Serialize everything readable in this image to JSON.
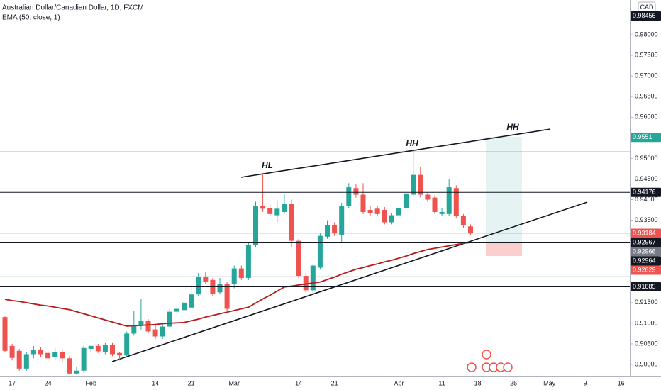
{
  "chart_data": {
    "type": "candlestick",
    "title": "Australian Dollar/Canadian Dollar, 1D, FXCM",
    "currency": "CAD",
    "up_color": "#26a69a",
    "down_color": "#ef5350",
    "categories": [
      null,
      "17",
      null,
      null,
      null,
      null,
      "24",
      null,
      null,
      null,
      null,
      null,
      "Feb",
      null,
      null,
      null,
      null,
      null,
      null,
      null,
      null,
      "14",
      null,
      null,
      null,
      null,
      "21",
      null,
      null,
      null,
      null,
      null,
      "Mar",
      null,
      null,
      null,
      null,
      null,
      null,
      null,
      null,
      "14",
      null,
      null,
      null,
      null,
      "21",
      null,
      null,
      null,
      null,
      null,
      null,
      null,
      null,
      "Apr",
      null,
      null,
      null,
      null,
      null,
      "11",
      null,
      null,
      null,
      null,
      "18",
      null,
      null,
      null,
      null,
      "25",
      null,
      null,
      null,
      null,
      "May",
      null,
      null,
      null,
      null,
      "9",
      null,
      null,
      null,
      null,
      "16"
    ],
    "open": [
      0.9115,
      0.9045,
      0.9033,
      0.899,
      0.9025,
      0.9035,
      0.9028,
      0.9018,
      0.903,
      0.9015,
      0.8978,
      0.8985,
      0.9038,
      0.9045,
      0.903,
      0.9048,
      0.9028,
      0.9022,
      0.9075,
      0.9095,
      0.9105,
      0.9085,
      0.9068,
      0.9092,
      0.9128,
      0.9132,
      0.9138,
      0.917,
      0.9213,
      0.9205,
      0.9175,
      0.9195,
      0.9195,
      0.9233,
      0.921,
      0.929,
      0.9385,
      0.938,
      0.9362,
      0.937,
      0.939,
      0.93,
      0.9215,
      0.918,
      0.9235,
      0.931,
      0.9338,
      0.9315,
      0.9385,
      0.9428,
      0.9412,
      0.9375,
      0.9378,
      0.9375,
      0.9345,
      0.9362,
      0.938,
      0.9412,
      0.946,
      0.9412,
      0.9405,
      0.9365,
      0.9365,
      0.9428,
      0.936,
      0.9335,
      null,
      null,
      null,
      null,
      null,
      null,
      null,
      null,
      null,
      null,
      null,
      null,
      null,
      null,
      null,
      null,
      null,
      null,
      null,
      null,
      null
    ],
    "high": [
      0.9118,
      0.905,
      0.9038,
      0.903,
      0.9045,
      0.9042,
      0.9035,
      0.904,
      0.9035,
      0.902,
      0.8995,
      0.9045,
      0.9048,
      0.905,
      0.9052,
      0.9052,
      0.903,
      0.908,
      0.913,
      0.916,
      0.911,
      0.9098,
      0.9098,
      0.9135,
      0.9145,
      0.916,
      0.9195,
      0.9222,
      0.9225,
      0.921,
      0.921,
      0.92,
      0.924,
      0.924,
      0.9295,
      0.9395,
      0.9462,
      0.9388,
      0.9398,
      0.9415,
      0.94,
      0.9305,
      0.9222,
      0.9245,
      0.9318,
      0.935,
      0.9345,
      0.9392,
      0.944,
      0.9438,
      0.944,
      0.9385,
      0.9385,
      0.9382,
      0.9368,
      0.9385,
      0.942,
      0.9518,
      0.948,
      0.9418,
      0.941,
      0.938,
      0.945,
      0.9435,
      0.9365,
      0.934,
      null,
      null,
      null,
      null,
      null,
      null,
      null,
      null,
      null,
      null,
      null,
      null,
      null,
      null,
      null,
      null,
      null,
      null,
      null,
      null,
      null
    ],
    "low": [
      0.903,
      0.901,
      0.8985,
      0.8985,
      0.9015,
      0.9018,
      0.9005,
      0.901,
      0.9005,
      0.8975,
      0.8975,
      0.898,
      0.903,
      0.9028,
      0.9025,
      0.902,
      0.901,
      0.902,
      0.907,
      0.9085,
      0.9075,
      0.9062,
      0.9062,
      0.9088,
      0.912,
      0.9125,
      0.9132,
      0.9165,
      0.9195,
      0.9165,
      0.917,
      0.913,
      0.9185,
      0.9205,
      0.9205,
      0.9285,
      0.937,
      0.936,
      0.9345,
      0.9365,
      0.9285,
      0.921,
      0.9175,
      0.9172,
      0.923,
      0.9305,
      0.9312,
      0.9295,
      0.938,
      0.9405,
      0.9365,
      0.936,
      0.936,
      0.934,
      0.934,
      0.9355,
      0.9375,
      0.9408,
      0.9405,
      0.9395,
      0.9365,
      0.936,
      0.936,
      0.9355,
      0.9332,
      0.9315,
      null,
      null,
      null,
      null,
      null,
      null,
      null,
      null,
      null,
      null,
      null,
      null,
      null,
      null,
      null,
      null,
      null,
      null,
      null,
      null,
      null
    ],
    "close": [
      0.9033,
      0.9016,
      0.899,
      0.9025,
      0.9035,
      0.9025,
      0.9015,
      0.903,
      0.9015,
      0.8978,
      0.8985,
      0.904,
      0.9045,
      0.9032,
      0.9048,
      0.9025,
      0.9022,
      0.9075,
      0.9095,
      0.9105,
      0.908,
      0.9068,
      0.9092,
      0.9128,
      0.9135,
      0.915,
      0.917,
      0.9213,
      0.92,
      0.9172,
      0.9195,
      0.9135,
      0.9233,
      0.921,
      0.929,
      0.9385,
      0.9378,
      0.9365,
      0.9378,
      0.939,
      0.93,
      0.9215,
      0.918,
      0.924,
      0.9312,
      0.9338,
      0.9318,
      0.9385,
      0.943,
      0.9412,
      0.937,
      0.9368,
      0.9365,
      0.9345,
      0.9362,
      0.938,
      0.9415,
      0.946,
      0.9412,
      0.94,
      0.937,
      0.937,
      0.943,
      0.936,
      0.9338,
      0.9318,
      null,
      null,
      null,
      null,
      null,
      null,
      null,
      null,
      null,
      null,
      null,
      null,
      null,
      null,
      null,
      null,
      null,
      null,
      null,
      null,
      null
    ],
    "series": [
      {
        "name": "EMA (50, close, 1)",
        "color": "#b71c1c",
        "values": [
          0.9158,
          0.9155,
          0.9153,
          0.915,
          0.9147,
          0.9144,
          0.9142,
          0.9139,
          0.9136,
          0.9133,
          0.9128,
          0.9123,
          0.9118,
          0.9113,
          0.9108,
          0.9103,
          0.9098,
          0.9093,
          0.9094,
          0.9095,
          0.9096,
          0.9097,
          0.9099,
          0.91,
          0.9101,
          0.9102,
          0.9106,
          0.911,
          0.9115,
          0.9119,
          0.9123,
          0.9127,
          0.9131,
          0.9135,
          0.9139,
          0.9149,
          0.9159,
          0.9168,
          0.9178,
          0.9188,
          0.919,
          0.9193,
          0.9195,
          0.9198,
          0.92,
          0.9206,
          0.9212,
          0.9219,
          0.9225,
          0.9231,
          0.9235,
          0.924,
          0.9244,
          0.9249,
          0.9253,
          0.9258,
          0.9263,
          0.9269,
          0.9274,
          0.9279,
          0.9282,
          0.9285,
          0.9288,
          0.9291,
          0.9294,
          0.9296,
          null,
          null,
          null,
          null,
          null,
          null,
          null,
          null,
          null,
          null,
          null,
          null,
          null,
          null,
          null,
          null,
          null,
          null,
          null,
          null,
          null
        ]
      }
    ],
    "ylim": [
      0.89725,
      0.98843
    ],
    "yticks": [
      {
        "value": 0.9,
        "label": "0.90000"
      },
      {
        "value": 0.905,
        "label": "0.90500"
      },
      {
        "value": 0.91,
        "label": "0.91000"
      },
      {
        "value": 0.915,
        "label": "0.91500"
      },
      {
        "value": 0.935,
        "label": "0.93500"
      },
      {
        "value": 0.94,
        "label": "0.94000"
      },
      {
        "value": 0.945,
        "label": "0.94500"
      },
      {
        "value": 0.95,
        "label": "0.95000"
      },
      {
        "value": 0.96,
        "label": "0.96000"
      },
      {
        "value": 0.965,
        "label": "0.96500"
      },
      {
        "value": 0.97,
        "label": "0.97000"
      },
      {
        "value": 0.975,
        "label": "0.97500"
      },
      {
        "value": 0.98,
        "label": "0.98000"
      }
    ],
    "price_labels": [
      {
        "value": 0.98456,
        "color": "#131722",
        "line": true
      },
      {
        "value": 0.9551,
        "color": "#26a69a",
        "line": false
      },
      {
        "value": 0.94176,
        "color": "#131722",
        "line": true
      },
      {
        "value": 0.93184,
        "color": "#ef5350",
        "line": false
      },
      {
        "value": 0.92967,
        "color": "#131722",
        "line": true
      },
      {
        "value": 0.92966,
        "color": "#787b86",
        "line": false
      },
      {
        "value": 0.92964,
        "color": "#131722",
        "line": false
      },
      {
        "value": 0.92629,
        "color": "#ef5350",
        "line": false
      },
      {
        "value": 0.91885,
        "color": "#131722",
        "line": true
      }
    ],
    "annotations": [
      "HL",
      "HH",
      "HH"
    ]
  }
}
